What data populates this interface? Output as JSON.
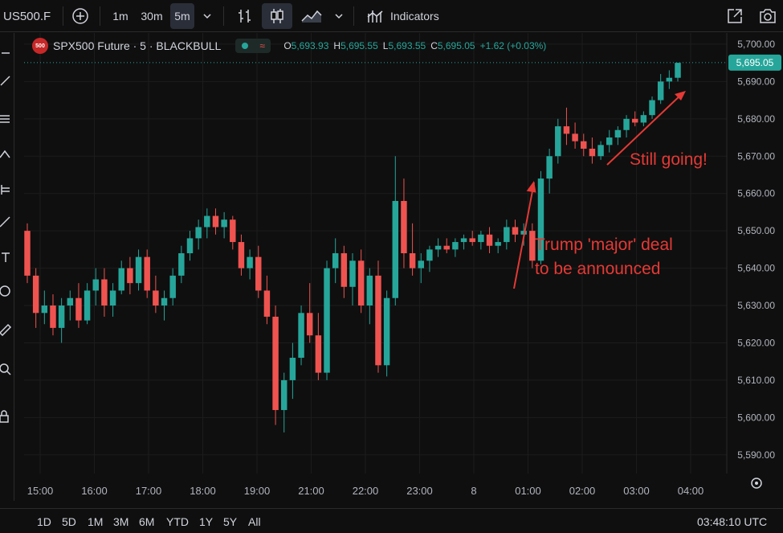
{
  "toolbar": {
    "symbol": "US500.F",
    "intervals": [
      "1m",
      "30m",
      "5m"
    ],
    "active_interval": "5m",
    "indicators_label": "Indicators"
  },
  "legend": {
    "title": "SPX500 Future · 5 · BLACKBULL",
    "logo_text": "500",
    "open_label": "O",
    "open": "5,693.93",
    "high_label": "H",
    "high": "5,695.55",
    "low_label": "L",
    "low": "5,693.55",
    "close_label": "C",
    "close": "5,695.05",
    "change": "+1.62 (+0.03%)"
  },
  "price_axis": {
    "ticks": [
      "5,700.00",
      "5,690.00",
      "5,680.00",
      "5,670.00",
      "5,660.00",
      "5,650.00",
      "5,640.00",
      "5,630.00",
      "5,620.00",
      "5,610.00",
      "5,600.00",
      "5,590.00"
    ],
    "current_price": "5,695.05"
  },
  "time_axis": {
    "ticks": [
      "15:00",
      "16:00",
      "17:00",
      "18:00",
      "19:00",
      "21:00",
      "22:00",
      "23:00",
      "8",
      "01:00",
      "02:00",
      "03:00",
      "04:00"
    ]
  },
  "annotations": {
    "deal_line1": "Trump 'major' deal",
    "deal_line2": "to be announced",
    "still_going": "Still going!"
  },
  "bottom": {
    "ranges": [
      "1D",
      "5D",
      "1M",
      "3M",
      "6M",
      "YTD",
      "1Y",
      "5Y",
      "All"
    ],
    "clock": "03:48:10 UTC"
  },
  "colors": {
    "up": "#26a69a",
    "down": "#ef5350",
    "annotation": "#e53935",
    "background": "#0f0f0f"
  },
  "chart_data": {
    "type": "candlestick",
    "title": "SPX500 Future · 5 · BLACKBULL",
    "ylim": [
      5585,
      5703
    ],
    "candles_approx": [
      [
        5650,
        5652,
        5636,
        5638
      ],
      [
        5638,
        5640,
        5624,
        5628
      ],
      [
        5628,
        5634,
        5625,
        5630
      ],
      [
        5630,
        5633,
        5622,
        5624
      ],
      [
        5624,
        5632,
        5620,
        5630
      ],
      [
        5630,
        5634,
        5626,
        5632
      ],
      [
        5632,
        5636,
        5624,
        5626
      ],
      [
        5626,
        5636,
        5625,
        5634
      ],
      [
        5634,
        5640,
        5630,
        5637
      ],
      [
        5637,
        5640,
        5627,
        5630
      ],
      [
        5630,
        5636,
        5627,
        5634
      ],
      [
        5634,
        5642,
        5633,
        5640
      ],
      [
        5640,
        5643,
        5633,
        5636
      ],
      [
        5636,
        5645,
        5634,
        5643
      ],
      [
        5643,
        5645,
        5632,
        5634
      ],
      [
        5634,
        5638,
        5628,
        5630
      ],
      [
        5630,
        5634,
        5626,
        5632
      ],
      [
        5632,
        5640,
        5630,
        5638
      ],
      [
        5638,
        5646,
        5636,
        5644
      ],
      [
        5644,
        5650,
        5642,
        5648
      ],
      [
        5648,
        5653,
        5645,
        5651
      ],
      [
        5651,
        5656,
        5648,
        5654
      ],
      [
        5654,
        5656,
        5649,
        5651
      ],
      [
        5651,
        5655,
        5648,
        5653
      ],
      [
        5653,
        5654,
        5645,
        5647
      ],
      [
        5647,
        5649,
        5638,
        5640
      ],
      [
        5640,
        5645,
        5637,
        5643
      ],
      [
        5643,
        5646,
        5632,
        5634
      ],
      [
        5634,
        5638,
        5625,
        5627
      ],
      [
        5627,
        5630,
        5598,
        5602
      ],
      [
        5602,
        5612,
        5596,
        5610
      ],
      [
        5610,
        5620,
        5605,
        5616
      ],
      [
        5616,
        5630,
        5614,
        5628
      ],
      [
        5628,
        5636,
        5620,
        5622
      ],
      [
        5622,
        5628,
        5610,
        5612
      ],
      [
        5612,
        5642,
        5610,
        5640
      ],
      [
        5640,
        5648,
        5636,
        5644
      ],
      [
        5644,
        5646,
        5632,
        5635
      ],
      [
        5635,
        5644,
        5630,
        5642
      ],
      [
        5642,
        5645,
        5628,
        5630
      ],
      [
        5630,
        5640,
        5625,
        5638
      ],
      [
        5638,
        5642,
        5612,
        5614
      ],
      [
        5614,
        5634,
        5611,
        5632
      ],
      [
        5632,
        5670,
        5630,
        5658
      ],
      [
        5658,
        5664,
        5640,
        5644
      ],
      [
        5644,
        5652,
        5638,
        5640
      ],
      [
        5640,
        5644,
        5636,
        5642
      ],
      [
        5642,
        5646,
        5639,
        5645
      ],
      [
        5645,
        5648,
        5643,
        5646
      ],
      [
        5646,
        5648,
        5644,
        5645
      ],
      [
        5645,
        5648,
        5643,
        5647
      ],
      [
        5647,
        5649,
        5645,
        5648
      ],
      [
        5648,
        5650,
        5646,
        5647
      ],
      [
        5647,
        5650,
        5645,
        5649
      ],
      [
        5649,
        5651,
        5644,
        5646
      ],
      [
        5646,
        5648,
        5644,
        5647
      ],
      [
        5647,
        5653,
        5645,
        5651
      ],
      [
        5651,
        5653,
        5647,
        5649
      ],
      [
        5649,
        5652,
        5646,
        5650
      ],
      [
        5650,
        5652,
        5640,
        5642
      ],
      [
        5642,
        5666,
        5641,
        5664
      ],
      [
        5664,
        5672,
        5660,
        5670
      ],
      [
        5670,
        5680,
        5668,
        5678
      ],
      [
        5678,
        5683,
        5673,
        5676
      ],
      [
        5676,
        5679,
        5672,
        5674
      ],
      [
        5674,
        5676,
        5670,
        5672
      ],
      [
        5672,
        5675,
        5668,
        5670
      ],
      [
        5670,
        5674,
        5669,
        5673
      ],
      [
        5673,
        5677,
        5671,
        5675
      ],
      [
        5675,
        5678,
        5673,
        5677
      ],
      [
        5677,
        5681,
        5675,
        5680
      ],
      [
        5680,
        5682,
        5678,
        5679
      ],
      [
        5679,
        5682,
        5678,
        5681
      ],
      [
        5681,
        5686,
        5680,
        5685
      ],
      [
        5685,
        5692,
        5684,
        5690
      ],
      [
        5690,
        5693,
        5688,
        5691
      ],
      [
        5691,
        5695,
        5690,
        5695
      ]
    ]
  }
}
